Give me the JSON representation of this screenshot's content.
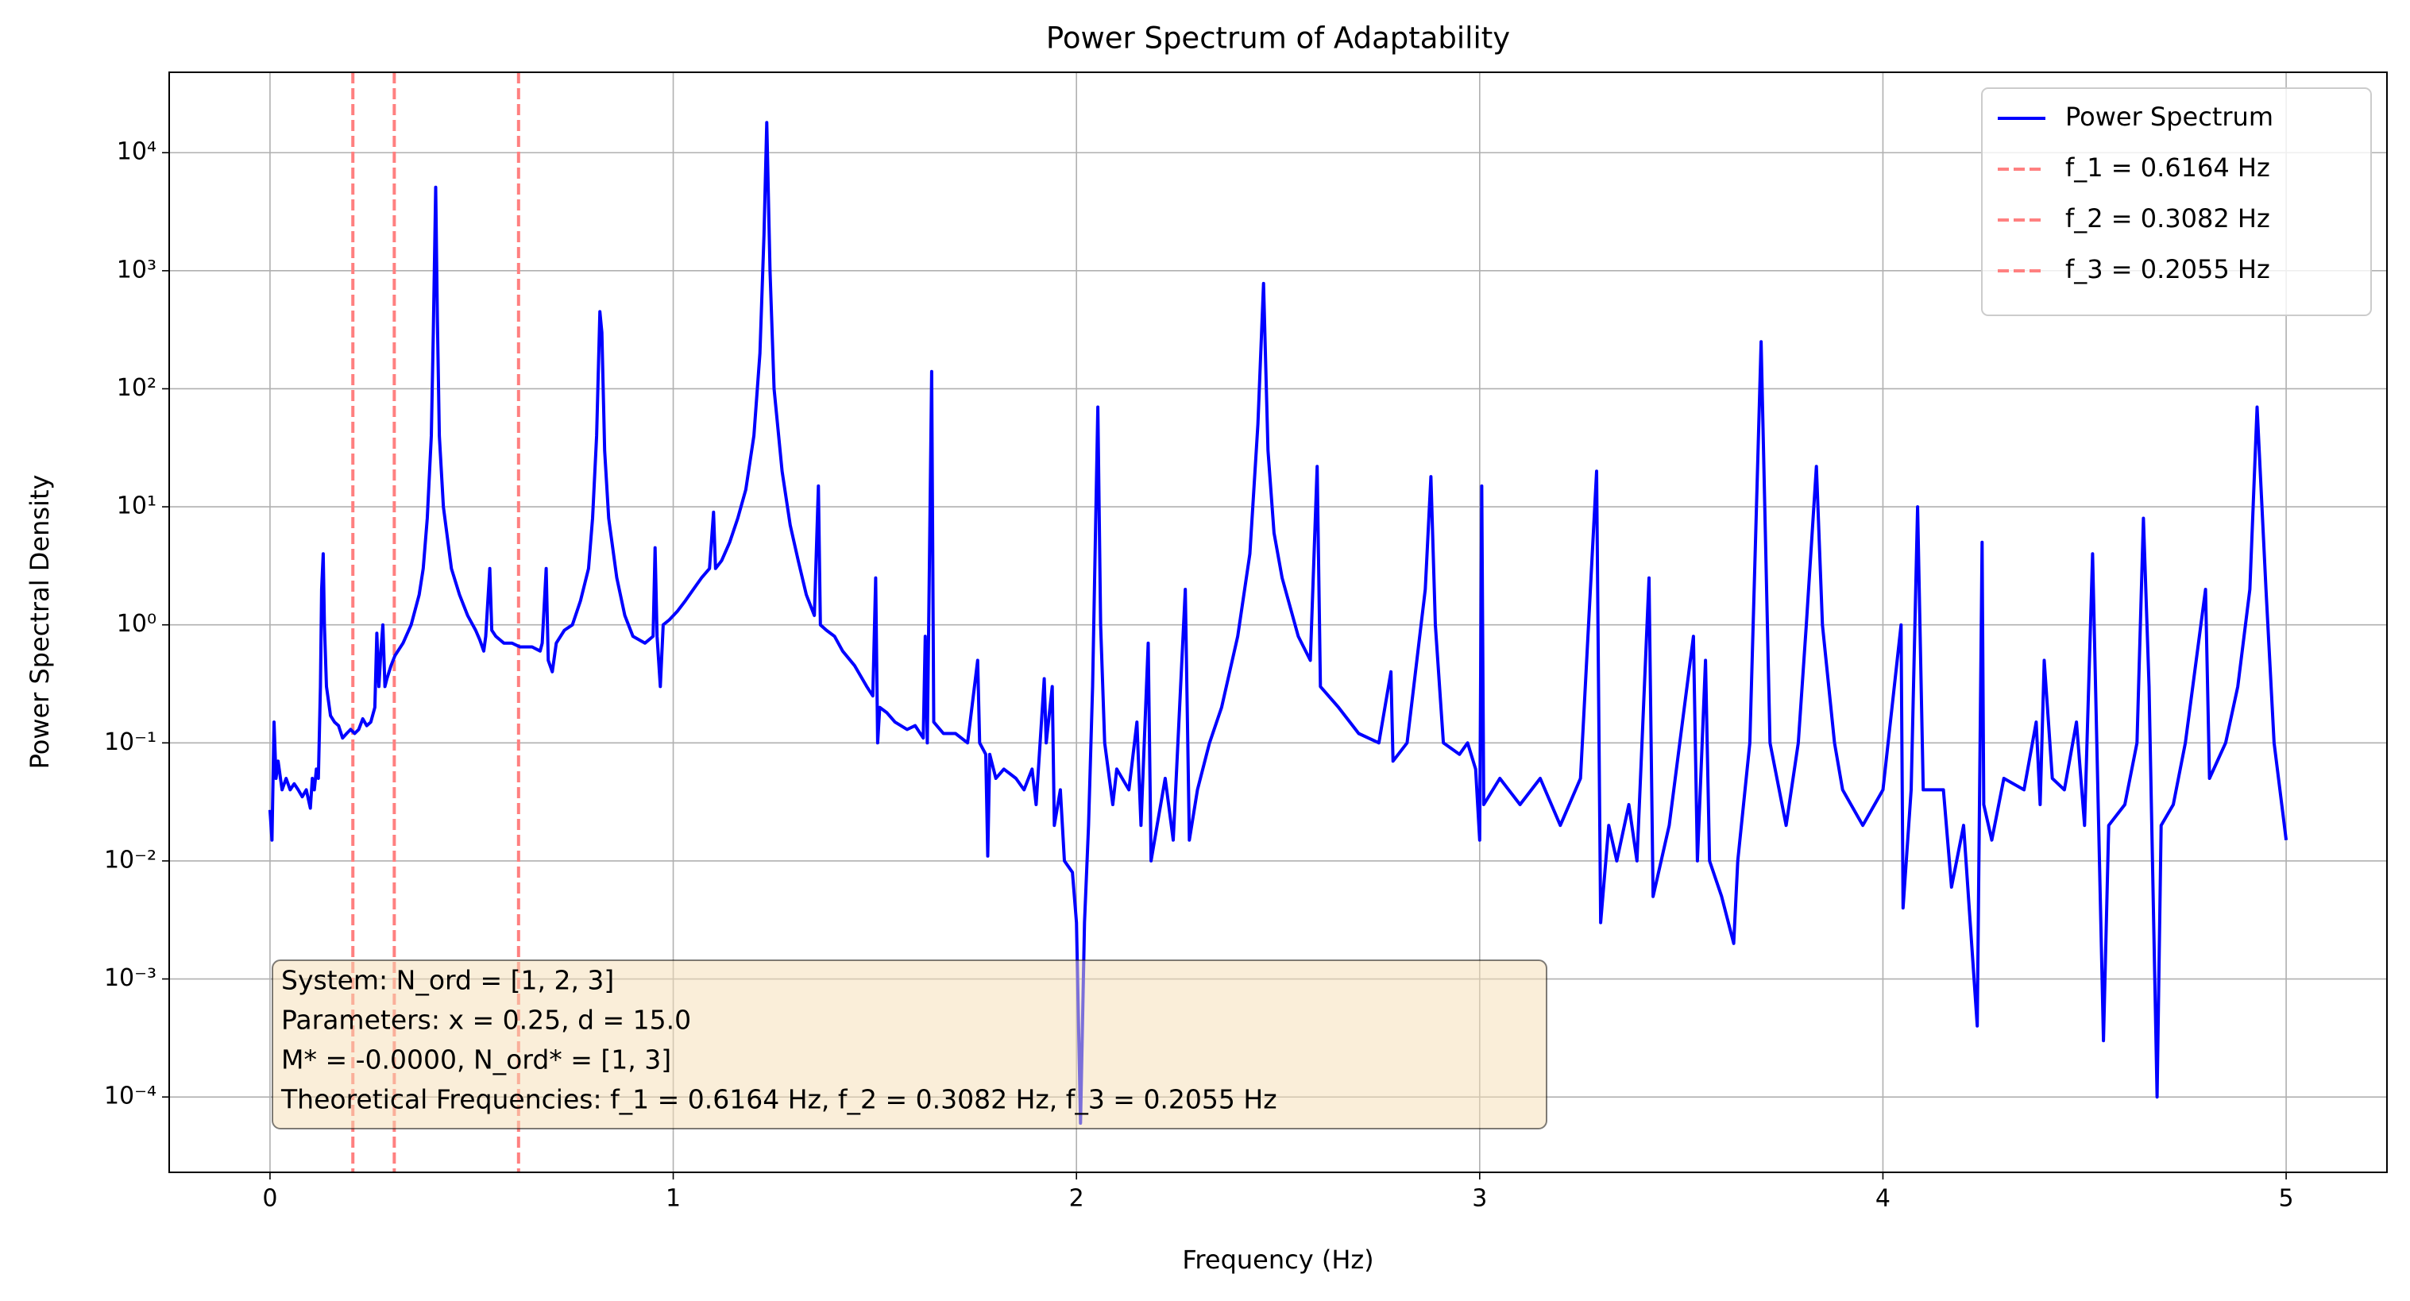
{
  "chart_data": {
    "type": "line",
    "title": "Power Spectrum of Adaptability",
    "x_label": "Frequency (Hz)",
    "y_label": "Power Spectral Density",
    "log_y": true,
    "grid": true,
    "legend_position": "upper right",
    "xlim": [
      -0.25,
      5.25
    ],
    "xticks": [
      0,
      1,
      2,
      3,
      4,
      5
    ],
    "ylim": [
      2.3e-05,
      48000
    ],
    "yticks": [
      {
        "value": 0.0001,
        "label": "10⁻⁴"
      },
      {
        "value": 0.001,
        "label": "10⁻³"
      },
      {
        "value": 0.01,
        "label": "10⁻²"
      },
      {
        "value": 0.1,
        "label": "10⁻¹"
      },
      {
        "value": 1,
        "label": "10⁰"
      },
      {
        "value": 10,
        "label": "10¹"
      },
      {
        "value": 100,
        "label": "10²"
      },
      {
        "value": 1000,
        "label": "10³"
      },
      {
        "value": 10000,
        "label": "10⁴"
      }
    ],
    "x": [
      0,
      0.005,
      0.01,
      0.015,
      0.02,
      0.03,
      0.04,
      0.05,
      0.06,
      0.07,
      0.08,
      0.09,
      0.1,
      0.105,
      0.11,
      0.115,
      0.12,
      0.125,
      0.128,
      0.132,
      0.135,
      0.14,
      0.15,
      0.16,
      0.17,
      0.18,
      0.19,
      0.2,
      0.21,
      0.22,
      0.23,
      0.24,
      0.25,
      0.26,
      0.265,
      0.27,
      0.275,
      0.28,
      0.285,
      0.29,
      0.3,
      0.31,
      0.33,
      0.35,
      0.37,
      0.38,
      0.39,
      0.4,
      0.405,
      0.411,
      0.415,
      0.42,
      0.43,
      0.45,
      0.47,
      0.49,
      0.51,
      0.52,
      0.53,
      0.535,
      0.545,
      0.55,
      0.56,
      0.58,
      0.6,
      0.62,
      0.65,
      0.67,
      0.675,
      0.685,
      0.69,
      0.7,
      0.71,
      0.73,
      0.75,
      0.77,
      0.79,
      0.8,
      0.81,
      0.818,
      0.823,
      0.83,
      0.84,
      0.86,
      0.88,
      0.9,
      0.93,
      0.95,
      0.955,
      0.96,
      0.968,
      0.975,
      0.99,
      1.01,
      1.03,
      1.05,
      1.07,
      1.09,
      1.1,
      1.105,
      1.12,
      1.14,
      1.16,
      1.18,
      1.2,
      1.215,
      1.225,
      1.232,
      1.24,
      1.25,
      1.27,
      1.29,
      1.31,
      1.33,
      1.35,
      1.36,
      1.365,
      1.38,
      1.4,
      1.42,
      1.45,
      1.48,
      1.495,
      1.502,
      1.507,
      1.512,
      1.53,
      1.55,
      1.58,
      1.6,
      1.62,
      1.625,
      1.63,
      1.641,
      1.646,
      1.67,
      1.7,
      1.73,
      1.755,
      1.76,
      1.775,
      1.78,
      1.785,
      1.8,
      1.82,
      1.85,
      1.87,
      1.89,
      1.9,
      1.92,
      1.925,
      1.94,
      1.945,
      1.96,
      1.97,
      1.99,
      2.0,
      2.01,
      2.02,
      2.03,
      2.04,
      2.053,
      2.06,
      2.07,
      2.09,
      2.1,
      2.13,
      2.15,
      2.16,
      2.178,
      2.185,
      2.2,
      2.22,
      2.24,
      2.27,
      2.28,
      2.3,
      2.33,
      2.36,
      2.4,
      2.43,
      2.45,
      2.464,
      2.475,
      2.49,
      2.51,
      2.55,
      2.58,
      2.597,
      2.605,
      2.65,
      2.7,
      2.75,
      2.78,
      2.785,
      2.82,
      2.865,
      2.879,
      2.89,
      2.91,
      2.95,
      2.97,
      2.99,
      3.0,
      3.005,
      3.01,
      3.05,
      3.1,
      3.15,
      3.2,
      3.25,
      3.29,
      3.3,
      3.32,
      3.34,
      3.37,
      3.39,
      3.42,
      3.43,
      3.47,
      3.53,
      3.54,
      3.56,
      3.57,
      3.6,
      3.63,
      3.64,
      3.67,
      3.698,
      3.72,
      3.76,
      3.79,
      3.81,
      3.835,
      3.85,
      3.88,
      3.9,
      3.95,
      4.0,
      4.045,
      4.05,
      4.07,
      4.086,
      4.1,
      4.15,
      4.17,
      4.2,
      4.234,
      4.246,
      4.25,
      4.27,
      4.3,
      4.35,
      4.38,
      4.39,
      4.4,
      4.42,
      4.45,
      4.48,
      4.5,
      4.52,
      4.547,
      4.56,
      4.6,
      4.63,
      4.646,
      4.66,
      4.68,
      4.69,
      4.72,
      4.75,
      4.8,
      4.81,
      4.85,
      4.88,
      4.91,
      4.928,
      4.95,
      4.97,
      5.0
    ],
    "series": [
      {
        "name": "Power Spectrum",
        "color": "#0000ff",
        "values": [
          0.027,
          0.015,
          0.15,
          0.05,
          0.07,
          0.04,
          0.05,
          0.04,
          0.045,
          0.04,
          0.035,
          0.04,
          0.028,
          0.05,
          0.04,
          0.06,
          0.05,
          0.3,
          2,
          4,
          1,
          0.3,
          0.17,
          0.15,
          0.14,
          0.11,
          0.12,
          0.13,
          0.12,
          0.13,
          0.16,
          0.14,
          0.15,
          0.2,
          0.85,
          0.3,
          0.6,
          1,
          0.3,
          0.35,
          0.45,
          0.55,
          0.7,
          1,
          1.8,
          3,
          8,
          40,
          300,
          5100,
          400,
          40,
          10,
          3,
          1.8,
          1.2,
          0.9,
          0.75,
          0.6,
          0.8,
          3,
          0.9,
          0.8,
          0.7,
          0.7,
          0.65,
          0.65,
          0.6,
          0.7,
          3,
          0.5,
          0.4,
          0.7,
          0.9,
          1,
          1.6,
          3,
          8,
          40,
          450,
          300,
          30,
          8,
          2.5,
          1.2,
          0.8,
          0.7,
          0.8,
          4.5,
          0.8,
          0.3,
          1,
          1.1,
          1.3,
          1.6,
          2,
          2.5,
          3,
          9,
          3,
          3.5,
          5,
          8,
          14,
          40,
          200,
          2000,
          18000,
          1000,
          100,
          20,
          7,
          3.5,
          1.8,
          1.2,
          15,
          1,
          0.9,
          0.8,
          0.6,
          0.45,
          0.3,
          0.25,
          2.5,
          0.1,
          0.2,
          0.18,
          0.15,
          0.13,
          0.14,
          0.11,
          0.8,
          0.1,
          140,
          0.15,
          0.12,
          0.12,
          0.1,
          0.5,
          0.1,
          0.08,
          0.011,
          0.08,
          0.05,
          0.06,
          0.05,
          0.04,
          0.06,
          0.03,
          0.35,
          0.1,
          0.3,
          0.02,
          0.04,
          0.01,
          0.008,
          0.003,
          6e-05,
          0.003,
          0.02,
          0.3,
          70,
          1,
          0.1,
          0.03,
          0.06,
          0.04,
          0.15,
          0.02,
          0.7,
          0.01,
          0.02,
          0.05,
          0.015,
          2,
          0.015,
          0.04,
          0.1,
          0.2,
          0.8,
          4,
          50,
          780,
          30,
          6,
          2.5,
          0.8,
          0.5,
          22,
          0.3,
          0.2,
          0.12,
          0.1,
          0.4,
          0.07,
          0.1,
          2,
          18,
          1,
          0.1,
          0.08,
          0.1,
          0.06,
          0.015,
          15,
          0.03,
          0.05,
          0.03,
          0.05,
          0.02,
          0.05,
          20,
          0.003,
          0.02,
          0.01,
          0.03,
          0.01,
          2.5,
          0.005,
          0.02,
          0.8,
          0.01,
          0.5,
          0.01,
          0.005,
          0.002,
          0.01,
          0.1,
          250,
          0.1,
          0.02,
          0.1,
          1,
          22,
          1,
          0.1,
          0.04,
          0.02,
          0.04,
          1,
          0.004,
          0.04,
          10,
          0.04,
          0.04,
          0.006,
          0.02,
          0.0004,
          5,
          0.03,
          0.015,
          0.05,
          0.04,
          0.15,
          0.03,
          0.5,
          0.05,
          0.04,
          0.15,
          0.02,
          4,
          0.0003,
          0.02,
          0.03,
          0.1,
          8,
          0.3,
          0.0001,
          0.02,
          0.03,
          0.1,
          2,
          0.05,
          0.1,
          0.3,
          2,
          70,
          2,
          0.1,
          0.015
        ]
      }
    ],
    "vlines": [
      {
        "name": "f_1 = 0.6164 Hz",
        "x": 0.6164,
        "color": "#ff8080"
      },
      {
        "name": "f_2 = 0.3082 Hz",
        "x": 0.3082,
        "color": "#ff8080"
      },
      {
        "name": "f_3 = 0.2055 Hz",
        "x": 0.2055,
        "color": "#ff8080"
      }
    ],
    "annotation": [
      "System: N_ord = [1, 2, 3]",
      "Parameters: x = 0.25, d = 15.0",
      "M* = -0.0000, N_ord* = [1, 3]",
      "Theoretical Frequencies: f_1 = 0.6164 Hz, f_2 = 0.3082 Hz, f_3 = 0.2055 Hz"
    ]
  }
}
